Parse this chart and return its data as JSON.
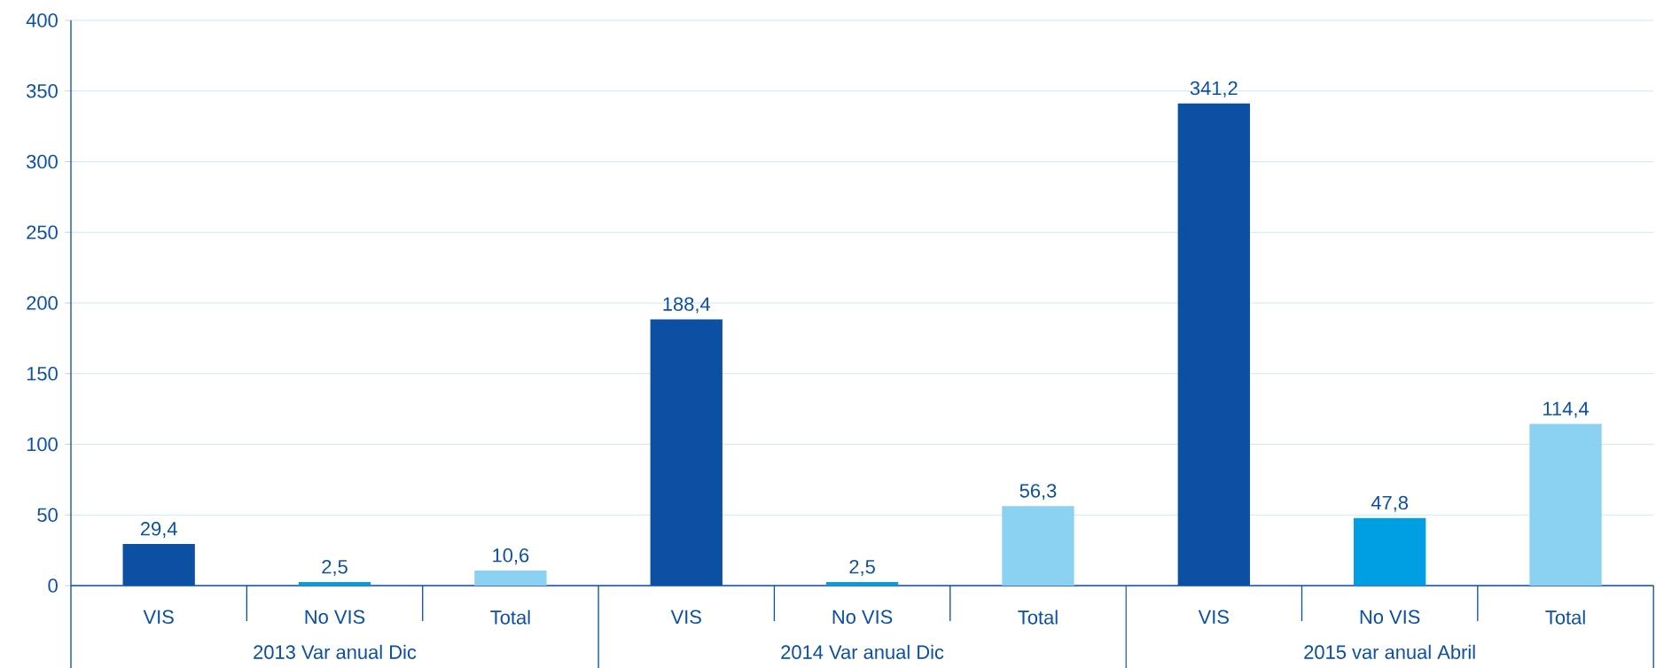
{
  "chart_data": {
    "type": "bar",
    "categories": [
      "VIS",
      "No VIS",
      "Total",
      "VIS",
      "No VIS",
      "Total",
      "VIS",
      "No VIS",
      "Total"
    ],
    "values": [
      29.4,
      2.5,
      10.6,
      188.4,
      2.5,
      56.3,
      341.2,
      47.8,
      114.4
    ],
    "colors": [
      "#0b50a2",
      "#009fe3",
      "#8ad1f2",
      "#0b50a2",
      "#009fe3",
      "#8ad1f2",
      "#0b50a2",
      "#009fe3",
      "#8ad1f2"
    ],
    "value_labels": [
      "29,4",
      "2,5",
      "10,6",
      "188,4",
      "2,5",
      "56,3",
      "341,2",
      "47,8",
      "114,4"
    ],
    "annotations": [
      "2013 Var anual Dic",
      "2014 Var anual Dic",
      "2015 var anual Abril"
    ],
    "ylim": [
      0,
      400
    ],
    "yticks": [
      0,
      50,
      100,
      150,
      200,
      250,
      300,
      350,
      400
    ],
    "grid": "y"
  }
}
